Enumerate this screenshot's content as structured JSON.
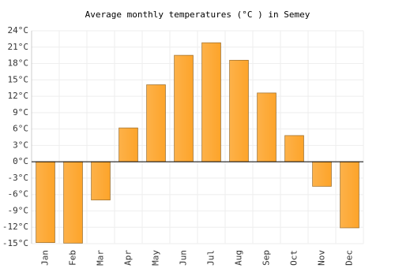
{
  "chart_data": {
    "type": "bar",
    "title": "Average monthly temperatures (°C ) in Semey",
    "categories": [
      "Jan",
      "Feb",
      "Mar",
      "Apr",
      "May",
      "Jun",
      "Jul",
      "Aug",
      "Sep",
      "Oct",
      "Nov",
      "Dec"
    ],
    "values": [
      -14.8,
      -14.9,
      -7,
      6.2,
      14.1,
      19.5,
      21.8,
      18.6,
      12.6,
      4.8,
      -4.5,
      -12.1
    ],
    "color": "#fda42a",
    "ylim": [
      -15,
      24
    ],
    "yticks": [
      {
        "value": -15,
        "label": "-15°C"
      },
      {
        "value": -12,
        "label": "-12°C"
      },
      {
        "value": -9,
        "label": "-9°C"
      },
      {
        "value": -6,
        "label": "-6°C"
      },
      {
        "value": -3,
        "label": "-3°C"
      },
      {
        "value": 0,
        "label": "0°C"
      },
      {
        "value": 3,
        "label": "3°C"
      },
      {
        "value": 6,
        "label": "6°C"
      },
      {
        "value": 9,
        "label": "9°C"
      },
      {
        "value": 12,
        "label": "12°C"
      },
      {
        "value": 15,
        "label": "15°C"
      },
      {
        "value": 18,
        "label": "18°C"
      },
      {
        "value": 21,
        "label": "21°C"
      },
      {
        "value": 24,
        "label": "24°C"
      }
    ],
    "grid": true
  }
}
